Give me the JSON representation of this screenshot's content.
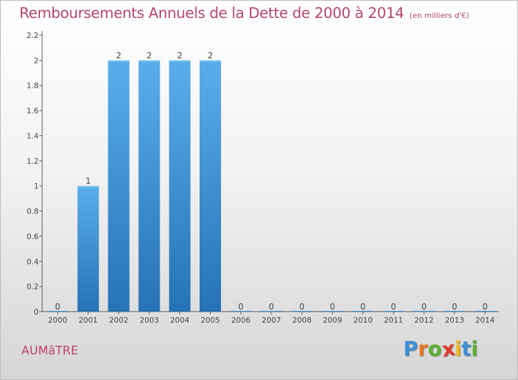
{
  "title": "Remboursements Annuels de la Dette de 2000 à 2014",
  "subtitle": "(en milliers d'€)",
  "commune": "AUMâTRE",
  "logo": {
    "letters": [
      {
        "ch": "P",
        "color": "#3b8fd6"
      },
      {
        "ch": "r",
        "color": "#e9731e"
      },
      {
        "ch": "o",
        "color": "#5bb030"
      },
      {
        "ch": "x",
        "color": "#e03a2c"
      },
      {
        "ch": "i",
        "color": "#f1b51a"
      },
      {
        "ch": "t",
        "color": "#3b8fd6"
      },
      {
        "ch": "i",
        "color": "#5bb030"
      }
    ]
  },
  "chart_data": {
    "type": "bar",
    "categories": [
      "2000",
      "2001",
      "2002",
      "2003",
      "2004",
      "2005",
      "2006",
      "2007",
      "2008",
      "2009",
      "2010",
      "2011",
      "2012",
      "2013",
      "2014"
    ],
    "values": [
      0,
      1,
      2,
      2,
      2,
      2,
      0,
      0,
      0,
      0,
      0,
      0,
      0,
      0,
      0
    ],
    "data_labels": [
      "0",
      "1",
      "2",
      "2",
      "2",
      "2",
      "0",
      "0",
      "0",
      "0",
      "0",
      "0",
      "0",
      "0",
      "0"
    ],
    "title": "Remboursements Annuels de la Dette de 2000 à 2014",
    "subtitle": "(en milliers d'€)",
    "xlabel": "",
    "ylabel": "",
    "ylim": [
      0,
      2.2
    ],
    "yticks": [
      0,
      0.2,
      0.4,
      0.6,
      0.8,
      1,
      1.2,
      1.4,
      1.6,
      1.8,
      2,
      2.2
    ],
    "ytick_labels": [
      "0",
      "0.2",
      "0.4",
      "0.6",
      "0.8",
      "1",
      "1.2",
      "1.4",
      "1.6",
      "1.8",
      "2",
      "2.2"
    ],
    "grid": false,
    "legend": "none",
    "bar_color": "#3a8fd4"
  }
}
